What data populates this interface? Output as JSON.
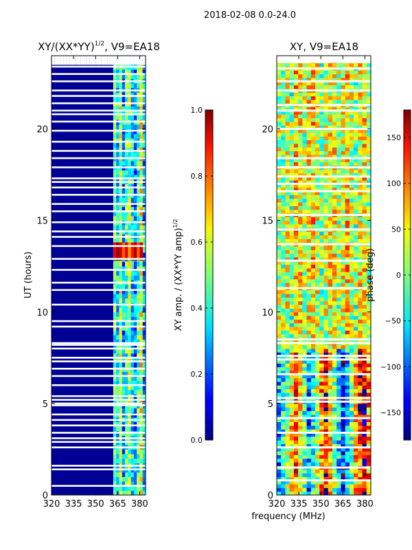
{
  "chart_data": {
    "suptitle": "2018-02-08 0.0-24.0",
    "shared_xlabel": "frequency (MHz)",
    "colormap": "jet",
    "panels": [
      {
        "type": "heatmap",
        "title_main": "XY/(XX*YY)",
        "title_sup": "1/2",
        "title_suffix": ", V9=EA18",
        "ylabel": "UT (hours)",
        "xlim": [
          320,
          384
        ],
        "ylim": [
          0,
          24
        ],
        "xticks": [
          "320",
          "335",
          "350",
          "365",
          "380"
        ],
        "xtick_values": [
          320,
          335,
          350,
          365,
          380
        ],
        "yticks": [
          "0",
          "5",
          "10",
          "15",
          "20"
        ],
        "ytick_values": [
          0,
          5,
          10,
          15,
          20
        ],
        "band_edges_mhz": [
          320,
          360,
          362,
          364,
          366,
          368,
          370,
          372,
          374,
          376,
          378,
          380,
          382,
          384
        ],
        "band_values": [
          0.02,
          0.02,
          0.45,
          0.35,
          0.55,
          0.3,
          0.45,
          0.5,
          0.35,
          0.25,
          0.45,
          0.6,
          0.3
        ],
        "hot_block": {
          "f_from": 362,
          "f_to": 382,
          "t_from": 12.8,
          "t_to": 13.8,
          "value": 0.85
        },
        "gap_hours": [
          0.5,
          1.4,
          1.6,
          2.6,
          2.9,
          3.1,
          3.4,
          3.8,
          4.1,
          4.4,
          4.9,
          5.0,
          5.2,
          5.4,
          6.0,
          6.5,
          6.9,
          7.3,
          7.5,
          8.0,
          8.2,
          8.3,
          9.2,
          9.5,
          10.4,
          11.2,
          11.6,
          12.3,
          12.9,
          13.6,
          14.1,
          14.4,
          14.9,
          15.5,
          15.9,
          16.4,
          16.8,
          17.1,
          17.3,
          17.9,
          18.4,
          18.8,
          19.3,
          19.9,
          20.4,
          20.8,
          21.0,
          21.4,
          21.8,
          22.1,
          22.6,
          23.0,
          23.4
        ]
      },
      {
        "type": "heatmap",
        "title_main": "XY, V9=EA18",
        "xlim": [
          320,
          384
        ],
        "ylim": [
          0,
          24
        ],
        "xticks": [
          "320",
          "335",
          "350",
          "365",
          "380"
        ],
        "xtick_values": [
          320,
          335,
          350,
          365,
          380
        ],
        "yticks": [
          "0",
          "5",
          "10",
          "15",
          "20"
        ],
        "ytick_values": [
          0,
          5,
          10,
          15,
          20
        ],
        "band_values_lower": [
          -70,
          -40,
          0,
          60,
          100,
          40,
          -20,
          -80,
          -30,
          20,
          80,
          130,
          60,
          0,
          -60,
          -120,
          -60,
          0,
          60,
          120,
          160,
          80
        ],
        "band_values_upper": [
          20,
          10,
          30,
          0,
          60,
          40,
          10,
          40,
          60,
          30,
          0,
          20,
          40,
          50,
          10,
          30,
          60,
          20,
          0,
          40,
          50,
          10
        ],
        "gap_hours": [
          0.8,
          1.5,
          2.6,
          3.4,
          4.2,
          5.1,
          5.3,
          6.6,
          7.4,
          7.6,
          8.3,
          8.5,
          11.3,
          12.8,
          13.7,
          14.5,
          15.3,
          16.6,
          17.0,
          17.4,
          17.9,
          18.4,
          20.0,
          21.0,
          21.3,
          22.1,
          22.6,
          23.3
        ]
      }
    ],
    "colorbars": [
      {
        "label_main": "XY amp. / (XX*YY amp)",
        "label_sup": "1/2",
        "range": [
          0.0,
          1.0
        ],
        "ticks": [
          "0.0",
          "0.2",
          "0.4",
          "0.6",
          "0.8",
          "1.0"
        ],
        "tick_values": [
          0.0,
          0.2,
          0.4,
          0.6,
          0.8,
          1.0
        ]
      },
      {
        "label_main": "phase (deg)",
        "range": [
          -180,
          180
        ],
        "ticks": [
          "−150",
          "−100",
          "−50",
          "0",
          "50",
          "100",
          "150"
        ],
        "tick_values": [
          -150,
          -100,
          -50,
          0,
          50,
          100,
          150
        ]
      }
    ]
  }
}
